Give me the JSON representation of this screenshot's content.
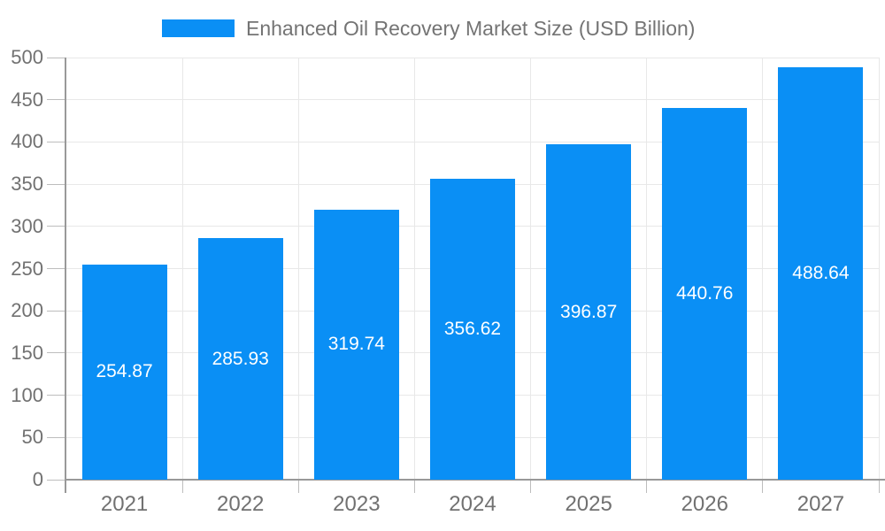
{
  "legend": {
    "label": "Enhanced Oil Recovery Market Size (USD Billion)"
  },
  "chart_data": {
    "type": "bar",
    "title": "Enhanced Oil Recovery Market Size (USD Billion)",
    "categories": [
      "2021",
      "2022",
      "2023",
      "2024",
      "2025",
      "2026",
      "2027"
    ],
    "values": [
      254.87,
      285.93,
      319.74,
      356.62,
      396.87,
      440.76,
      488.64
    ],
    "value_labels": [
      "254.87",
      "285.93",
      "319.74",
      "356.62",
      "396.87",
      "440.76",
      "488.64"
    ],
    "xlabel": "",
    "ylabel": "",
    "ylim": [
      0,
      500
    ],
    "ytick_step": 50,
    "ytick_labels": [
      "0",
      "50",
      "100",
      "150",
      "200",
      "250",
      "300",
      "350",
      "400",
      "450",
      "500"
    ],
    "grid": "horizontal-and-vertical",
    "legend_position": "top",
    "value_label_position": "center-inside-bar"
  },
  "colors": {
    "bar": "#0A8FF5",
    "axis": "#999999",
    "gridline": "#e8e8e8",
    "tick": "#bdbdbd",
    "axis_text": "#717171",
    "legend_text": "#747474",
    "value_text": "#ffffff",
    "background": "#ffffff"
  }
}
